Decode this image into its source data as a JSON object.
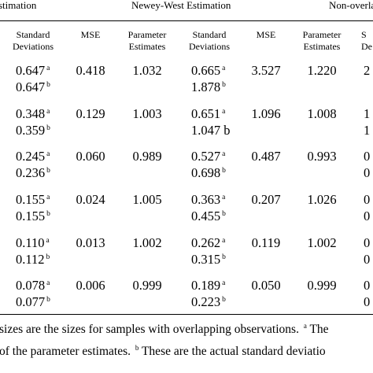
{
  "groups": {
    "left": "stimation",
    "middle": "Newey-West Estimation",
    "right": "Non-overla"
  },
  "columns": {
    "sd1": [
      "Standard",
      "Deviations"
    ],
    "mse1": [
      "MSE"
    ],
    "pe2": [
      "Parameter",
      "Estimates"
    ],
    "sd2": [
      "Standard",
      "Deviations"
    ],
    "mse2": [
      "MSE"
    ],
    "pe3": [
      "Parameter",
      "Estimates"
    ],
    "sd3": [
      "S",
      "De"
    ]
  },
  "rows": [
    {
      "sd1a": "0.647",
      "sd1b": "0.647",
      "mse1": "0.418",
      "pe2": "1.032",
      "sd2a": "0.665",
      "sd2b": "1.878",
      "mse2": "3.527",
      "pe3": "1.220",
      "sd3a": "2",
      "sd3b": ""
    },
    {
      "sd1a": "0.348",
      "sd1b": "0.359",
      "mse1": "0.129",
      "pe2": "1.003",
      "sd2a": "0.651",
      "sd2b": "1.047 b",
      "mse2": "1.096",
      "pe3": "1.008",
      "sd3a": "1",
      "sd3b": "1"
    },
    {
      "sd1a": "0.245",
      "sd1b": "0.236",
      "mse1": "0.060",
      "pe2": "0.989",
      "sd2a": "0.527",
      "sd2b": "0.698",
      "mse2": "0.487",
      "pe3": "0.993",
      "sd3a": "0",
      "sd3b": "0"
    },
    {
      "sd1a": "0.155",
      "sd1b": "0.155",
      "mse1": "0.024",
      "pe2": "1.005",
      "sd2a": "0.363",
      "sd2b": "0.455",
      "mse2": "0.207",
      "pe3": "1.026",
      "sd3a": "0",
      "sd3b": "0"
    },
    {
      "sd1a": "0.110",
      "sd1b": "0.112",
      "mse1": "0.013",
      "pe2": "1.002",
      "sd2a": "0.262",
      "sd2b": "0.315",
      "mse2": "0.119",
      "pe3": "1.002",
      "sd3a": "0",
      "sd3b": "0"
    },
    {
      "sd1a": "0.078",
      "sd1b": "0.077",
      "mse1": "0.006",
      "pe2": "0.999",
      "sd2a": "0.189",
      "sd2b": "0.223",
      "mse2": "0.050",
      "pe3": "0.999",
      "sd3a": "0",
      "sd3b": "0"
    }
  ],
  "marks": {
    "a": "a",
    "b": "b"
  },
  "notes": {
    "line1": "sizes are the sizes for samples with overlapping observations.",
    "line1_mark": "a",
    "line1_tail": "The",
    "line2": "of the parameter estimates.",
    "line2_mark": "b",
    "line2_tail": "These are the actual standard deviatio"
  }
}
